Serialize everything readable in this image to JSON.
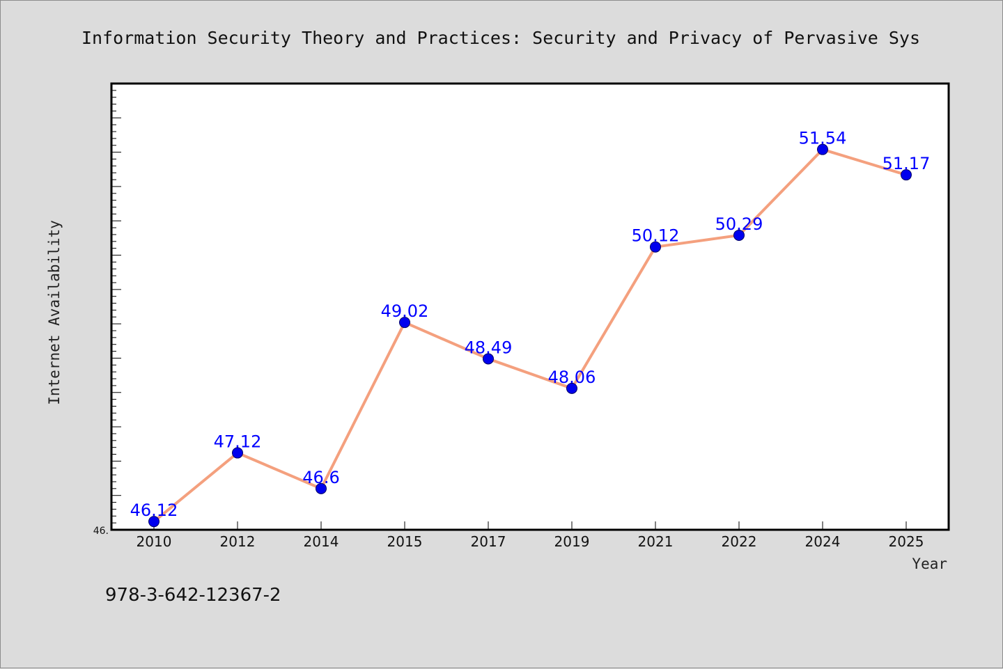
{
  "colors": {
    "background": "#dcdcdc",
    "plot_background": "#ffffff",
    "line": "#f4a07e",
    "marker": "#0000ee",
    "data_label": "#0000ff",
    "axis": "#000000"
  },
  "footnote": "978-3-642-12367-2",
  "chart_data": {
    "type": "line",
    "title": "Information Security Theory and Practices: Security and Privacy of Pervasive Sys",
    "xlabel": "Year",
    "ylabel": "Internet Availability",
    "categories": [
      "2010",
      "2012",
      "2014",
      "2015",
      "2017",
      "2019",
      "2021",
      "2022",
      "2024",
      "2025"
    ],
    "series": [
      {
        "values": [
          46.12,
          47.12,
          46.6,
          49.02,
          48.49,
          48.06,
          50.12,
          50.29,
          51.54,
          51.17
        ],
        "data_labels": [
          "46.12",
          "47.12",
          "46.6",
          "49.02",
          "48.49",
          "48.06",
          "50.12",
          "50.29",
          "51.54",
          "51.17"
        ]
      }
    ],
    "y_tick_labels": [
      "46."
    ],
    "ylim": [
      46.0,
      52.5
    ],
    "grid": false,
    "legend": "none",
    "marker": "circle"
  }
}
